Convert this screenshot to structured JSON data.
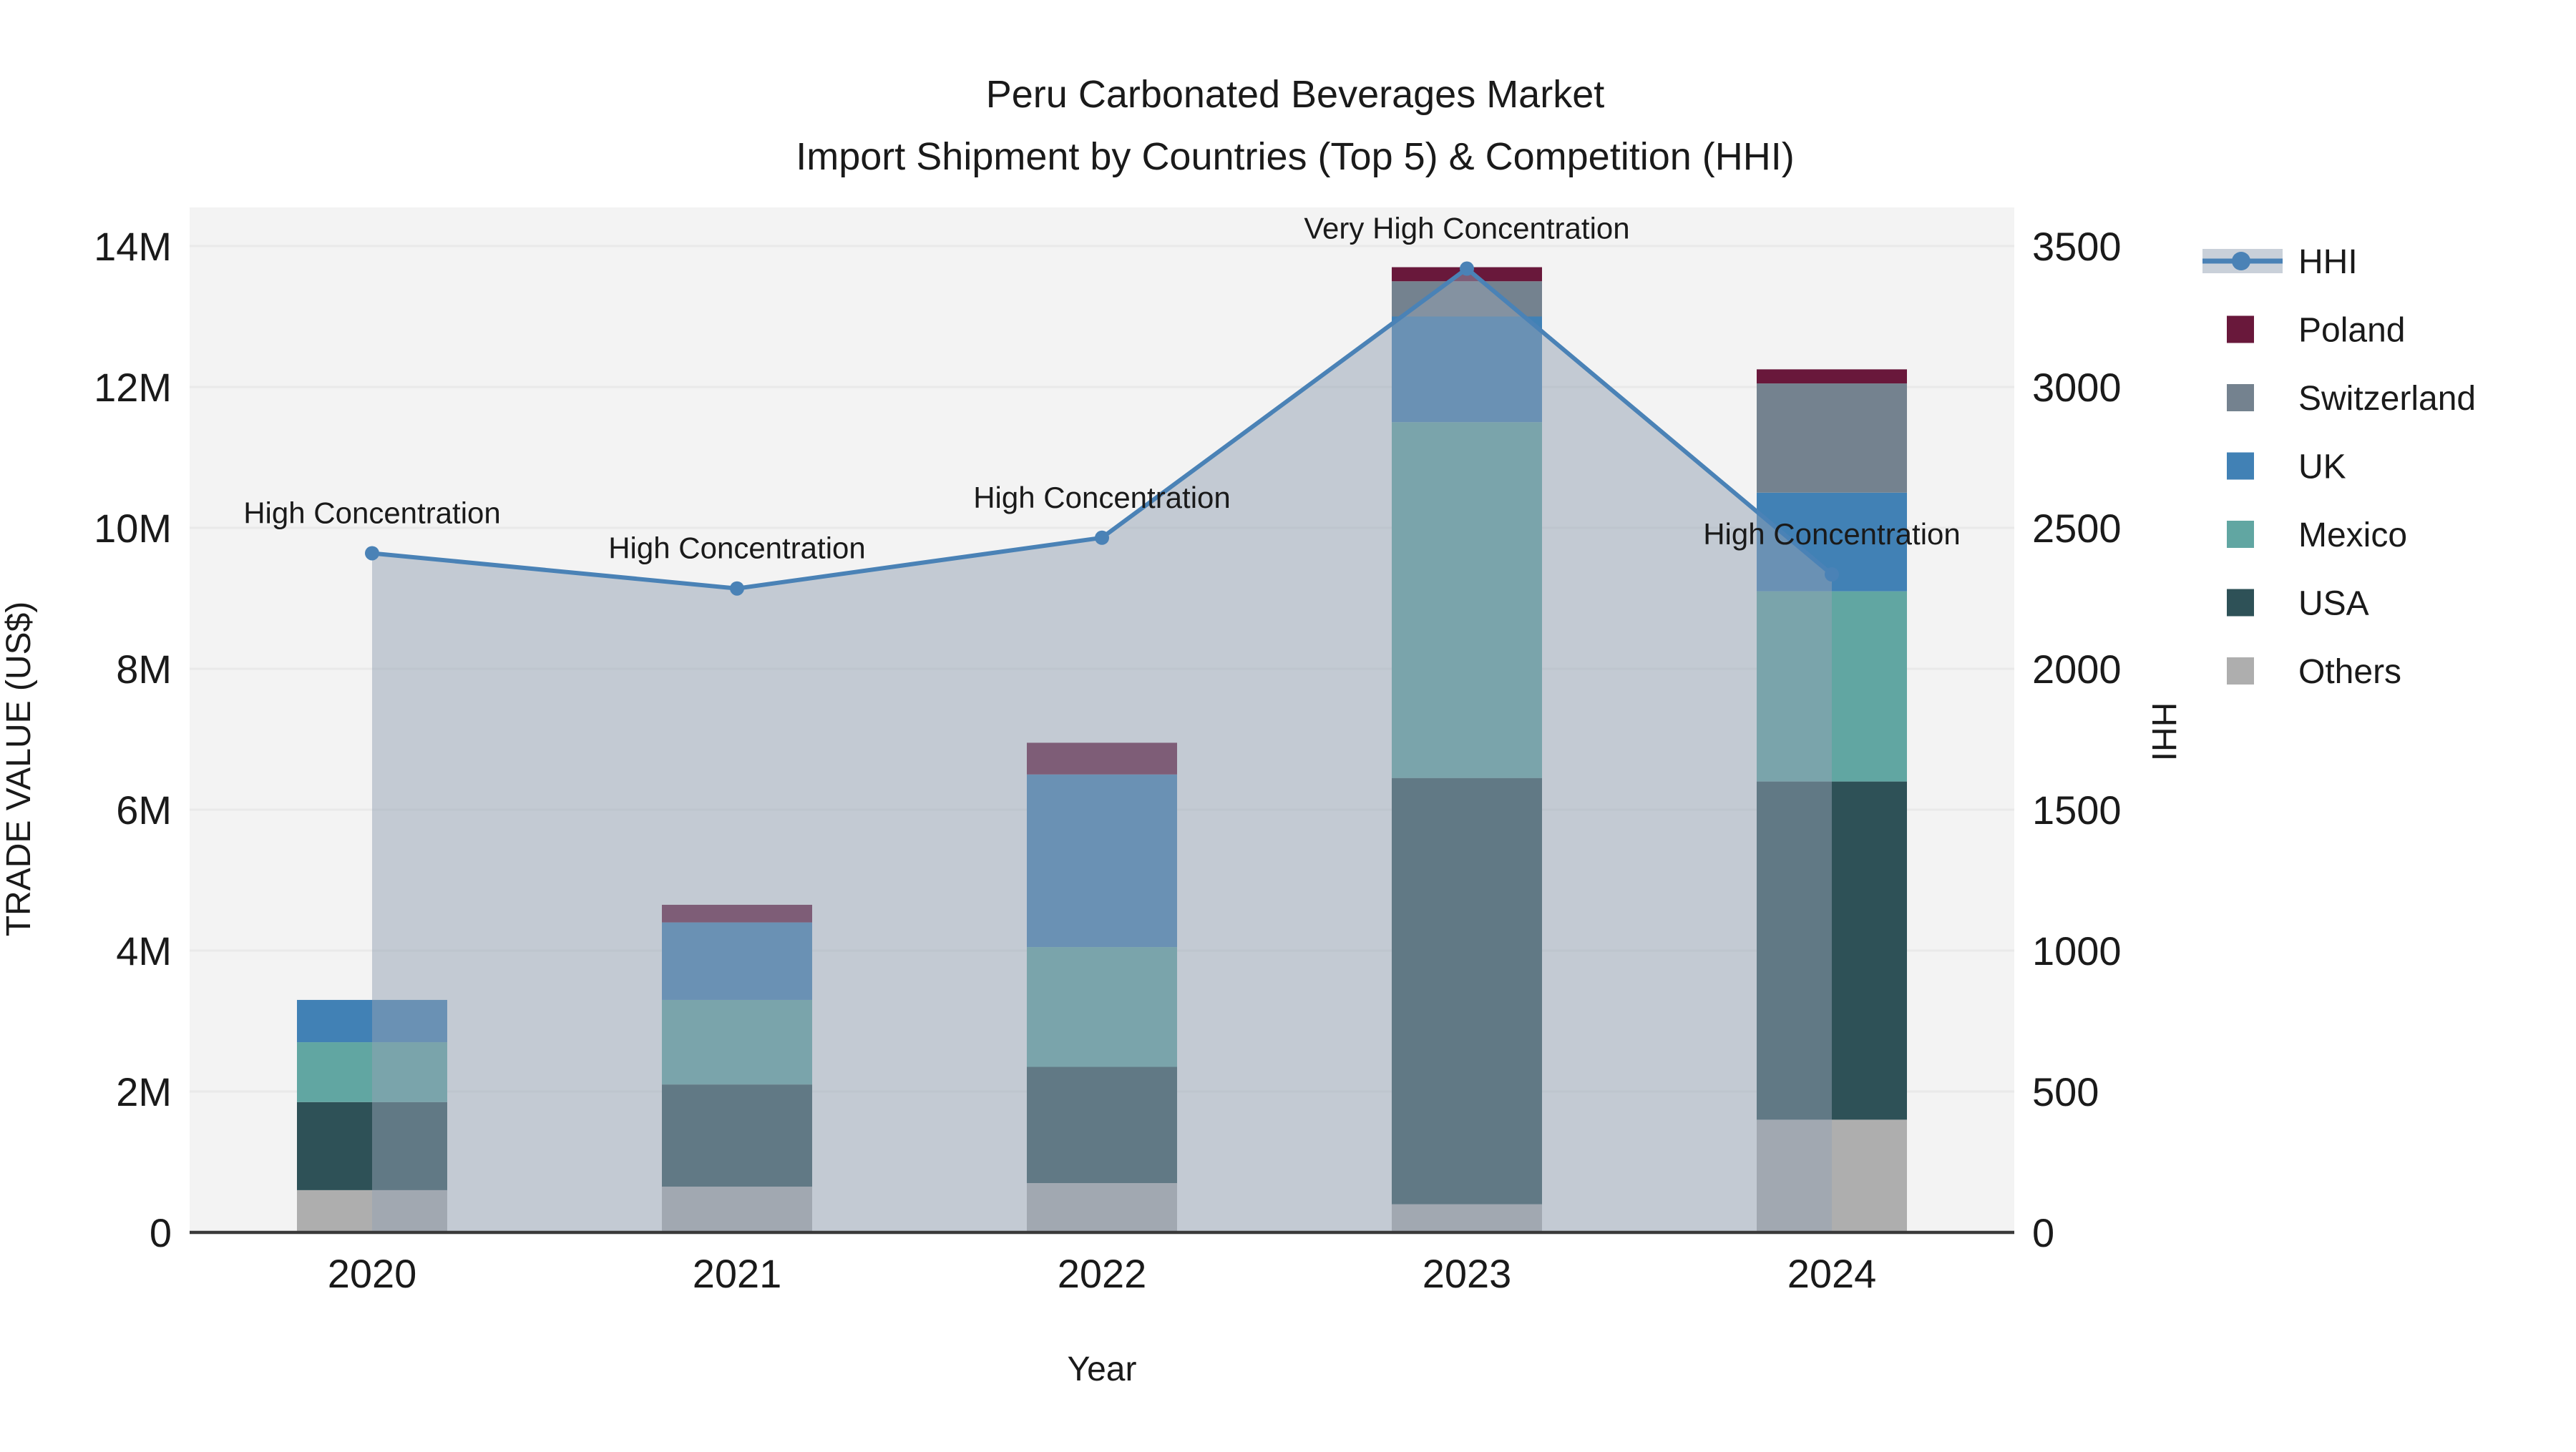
{
  "chart_data": {
    "type": "bar+line",
    "title_line1": "Peru Carbonated Beverages Market",
    "title_line2": "Import Shipment by Countries (Top 5) & Competition (HHI)",
    "xlabel": "Year",
    "ylabel_left": "TRADE VALUE (US$)",
    "ylabel_right": "HHI",
    "units": "bar values in million US$, line values in HHI points",
    "categories": [
      "2020",
      "2021",
      "2022",
      "2023",
      "2024"
    ],
    "series": [
      {
        "name": "Others",
        "color": "#AEAEAE",
        "values": [
          0.6,
          0.65,
          0.7,
          0.4,
          1.6
        ]
      },
      {
        "name": "USA",
        "color": "#2E5157",
        "values": [
          1.25,
          1.45,
          1.65,
          6.05,
          4.8
        ]
      },
      {
        "name": "Mexico",
        "color": "#61A6A2",
        "values": [
          0.85,
          1.2,
          1.7,
          5.05,
          2.7
        ]
      },
      {
        "name": "UK",
        "color": "#4181B5",
        "values": [
          0.6,
          1.1,
          2.45,
          1.5,
          1.4
        ]
      },
      {
        "name": "Switzerland",
        "color": "#74828F",
        "values": [
          0.0,
          0.0,
          0.0,
          0.5,
          1.55
        ]
      },
      {
        "name": "Poland",
        "color": "#69183B",
        "values": [
          0.0,
          0.25,
          0.45,
          0.2,
          0.2
        ]
      }
    ],
    "bar_totals": [
      3.3,
      4.65,
      6.95,
      13.7,
      12.25
    ],
    "hhi": {
      "name": "HHI",
      "line_color": "#4A82B6",
      "area_fill": "rgba(148,162,180,0.5)",
      "values": [
        2410,
        2285,
        2465,
        3420,
        2335
      ]
    },
    "annotations": [
      "High Concentration",
      "High Concentration",
      "High Concentration",
      "Very High Concentration",
      "High Concentration"
    ],
    "y_left": {
      "ticks": [
        "0",
        "2M",
        "4M",
        "6M",
        "8M",
        "10M",
        "12M",
        "14M"
      ],
      "values": [
        0,
        2,
        4,
        6,
        8,
        10,
        12,
        14
      ],
      "max": 14
    },
    "y_right": {
      "ticks": [
        "0",
        "500",
        "1000",
        "1500",
        "2000",
        "2500",
        "3000",
        "3500"
      ],
      "values": [
        0,
        500,
        1000,
        1500,
        2000,
        2500,
        3000,
        3500
      ],
      "max": 3500
    },
    "legend": [
      {
        "label": "HHI",
        "type": "line",
        "color": "#4A82B6"
      },
      {
        "label": "Poland",
        "type": "swatch",
        "color": "#69183B"
      },
      {
        "label": "Switzerland",
        "type": "swatch",
        "color": "#74828F"
      },
      {
        "label": "UK",
        "type": "swatch",
        "color": "#4181B5"
      },
      {
        "label": "Mexico",
        "type": "swatch",
        "color": "#61A6A2"
      },
      {
        "label": "USA",
        "type": "swatch",
        "color": "#2E5157"
      },
      {
        "label": "Others",
        "type": "swatch",
        "color": "#AEAEAE"
      }
    ],
    "colors": {
      "plot_background": "#F3F3F3",
      "gridline": "#E9E9E9",
      "axis_line": "#3A3A3A",
      "text": "#1a1a1a"
    }
  }
}
